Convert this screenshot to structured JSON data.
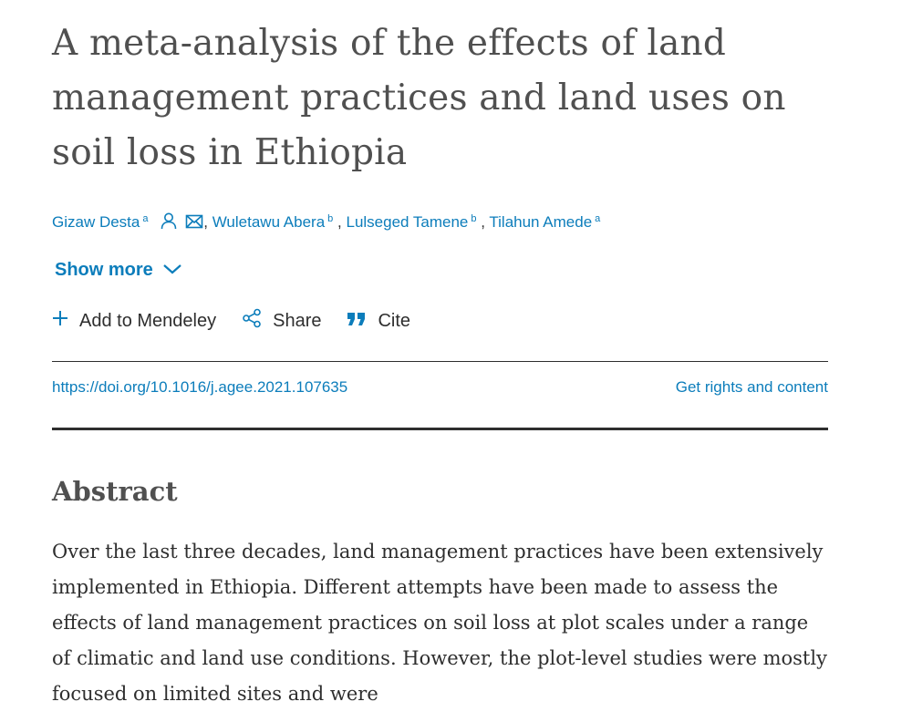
{
  "article": {
    "title": "A meta-analysis of the effects of land management practices and land uses on soil loss in Ethiopia",
    "authors": [
      {
        "name": "Gizaw Desta",
        "affiliation": "a",
        "has_icons": true
      },
      {
        "name": "Wuletawu Abera",
        "affiliation": "b"
      },
      {
        "name": "Lulseged Tamene",
        "affiliation": "b"
      },
      {
        "name": "Tilahun Amede",
        "affiliation": "a"
      }
    ],
    "show_more_label": "Show more",
    "actions": {
      "mendeley_label": "Add to Mendeley",
      "share_label": "Share",
      "cite_label": "Cite"
    },
    "doi": "https://doi.org/10.1016/j.agee.2021.107635",
    "rights_label": "Get rights and content",
    "abstract_heading": "Abstract",
    "abstract_text": "Over the last three decades, land management practices have been extensively implemented in Ethiopia. Different attempts have been made to assess the effects of land management practices on soil loss at plot scales under a range of climatic and land use conditions. However, the plot-level studies were mostly focused on limited sites and were"
  },
  "icons": {
    "author": "person-icon",
    "email": "envelope-icon",
    "chevron": "chevron-down-icon",
    "plus": "plus-icon",
    "share": "share-icon",
    "cite": "quote-icon"
  },
  "colors": {
    "link": "#0c7dbb",
    "text": "#2e2e2e",
    "title": "#505050"
  }
}
